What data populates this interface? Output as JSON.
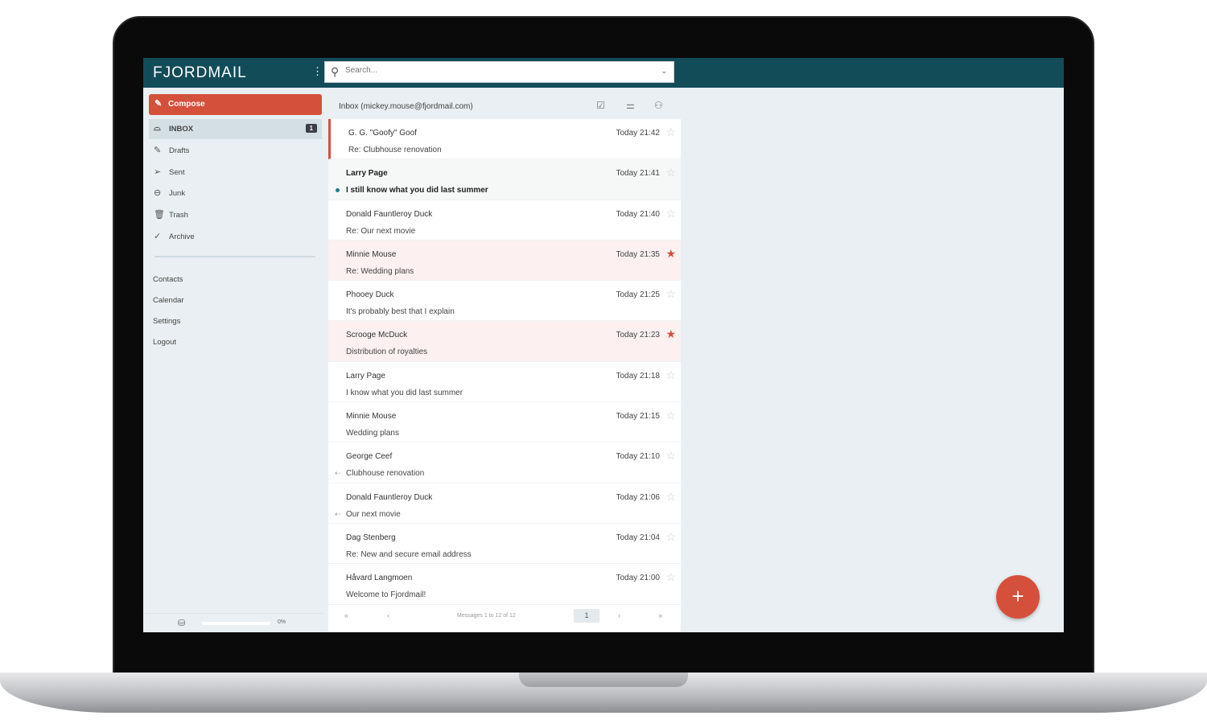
{
  "app": {
    "title": "FJORDMAIL",
    "accent": "#d5503a",
    "header_color": "#124c59"
  },
  "search": {
    "placeholder": "Search..."
  },
  "sidebar": {
    "compose_label": "Compose",
    "folders": [
      {
        "label": "INBOX",
        "icon": "inbox-icon",
        "badge": "1",
        "active": true
      },
      {
        "label": "Drafts",
        "icon": "pencil-icon"
      },
      {
        "label": "Sent",
        "icon": "send-icon"
      },
      {
        "label": "Junk",
        "icon": "junk-icon"
      },
      {
        "label": "Trash",
        "icon": "trash-icon"
      },
      {
        "label": "Archive",
        "icon": "check-icon"
      }
    ],
    "links": [
      "Contacts",
      "Calendar",
      "Settings",
      "Logout"
    ],
    "storage": {
      "percent_label": "0%",
      "usage": 0
    }
  },
  "inbox": {
    "title": "Inbox (mickey.mouse@fjordmail.com)",
    "messages": [
      {
        "from": "G. G. \"Goofy\" Goof",
        "subject": "Re: Clubhouse renovation",
        "time": "Today 21:42",
        "starred": false,
        "selected": true
      },
      {
        "from": "Larry Page",
        "subject": "I still know what you did last summer",
        "time": "Today 21:41",
        "starred": false,
        "unread": true
      },
      {
        "from": "Donald Fauntleroy Duck",
        "subject": "Re: Our next movie",
        "time": "Today 21:40",
        "starred": false
      },
      {
        "from": "Minnie Mouse",
        "subject": "Re: Wedding plans",
        "time": "Today 21:35",
        "starred": true
      },
      {
        "from": "Phooey Duck",
        "subject": "It's probably best that I explain",
        "time": "Today 21:25",
        "starred": false
      },
      {
        "from": "Scrooge McDuck",
        "subject": "Distribution of royalties",
        "time": "Today 21:23",
        "starred": true
      },
      {
        "from": "Larry Page",
        "subject": "I know what you did last summer",
        "time": "Today 21:18",
        "starred": false
      },
      {
        "from": "Minnie Mouse",
        "subject": "Wedding plans",
        "time": "Today 21:15",
        "starred": false
      },
      {
        "from": "George Ceef",
        "subject": "Clubhouse renovation",
        "time": "Today 21:10",
        "starred": false,
        "replied": true
      },
      {
        "from": "Donald Fauntleroy Duck",
        "subject": "Our next movie",
        "time": "Today 21:06",
        "starred": false,
        "replied": true
      },
      {
        "from": "Dag Stenberg",
        "subject": "Re: New and secure email address",
        "time": "Today 21:04",
        "starred": false
      },
      {
        "from": "Håvard Langmoen",
        "subject": "Welcome to Fjordmail!",
        "time": "Today 21:00",
        "starred": false
      }
    ],
    "pager": {
      "first": "«",
      "prev": "‹",
      "info": "Messages 1 to 12 of 12",
      "page": "1",
      "next": "›",
      "last": "»"
    }
  },
  "fab_label": "+"
}
